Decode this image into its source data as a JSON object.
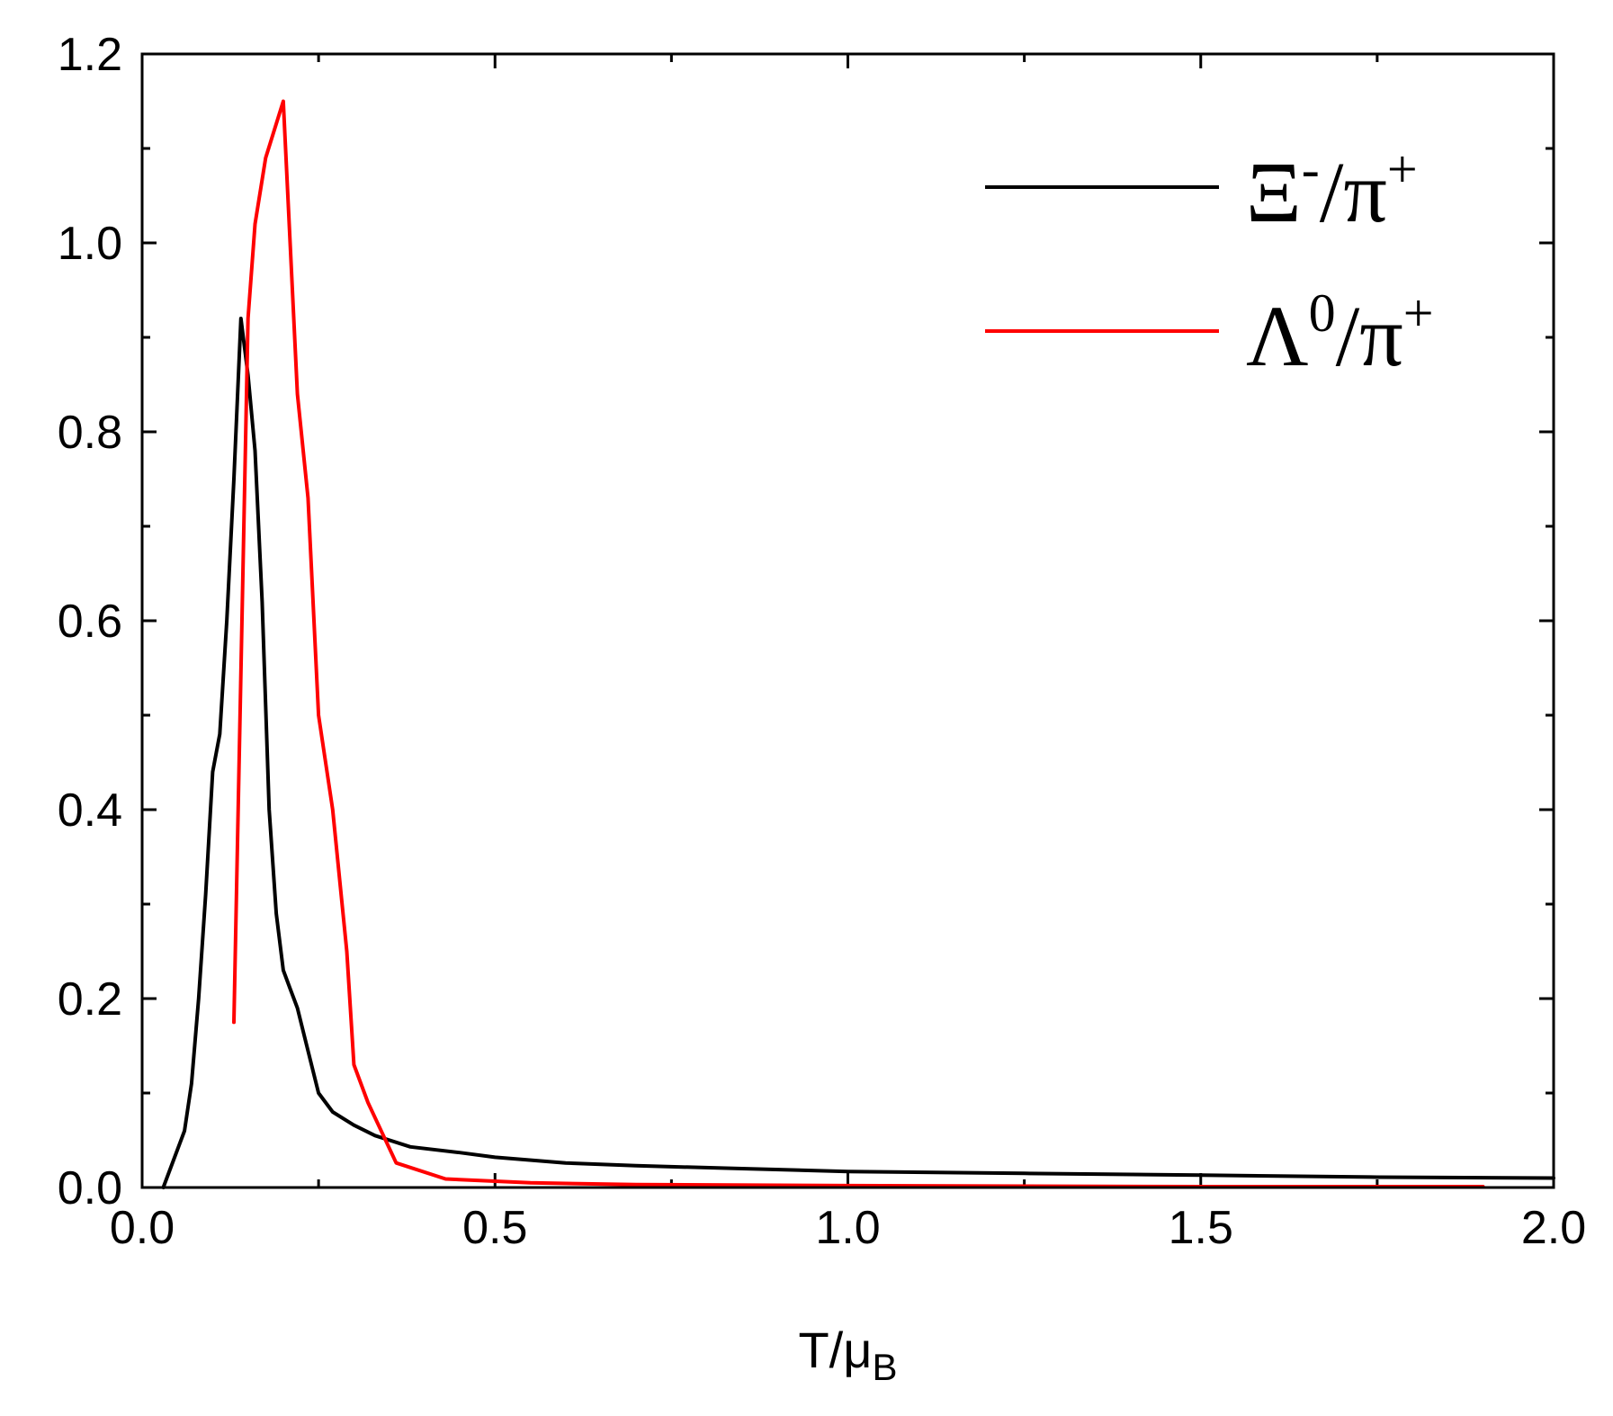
{
  "chart_data": {
    "type": "line",
    "title": "",
    "xlabel": {
      "main": "T/μ",
      "sub": "B"
    },
    "ylabel": "",
    "xlim": [
      0.0,
      2.0
    ],
    "ylim": [
      0.0,
      1.2
    ],
    "xticks": [
      {
        "value": 0.0,
        "label": "0.0"
      },
      {
        "value": 0.5,
        "label": "0.5"
      },
      {
        "value": 1.0,
        "label": "1.0"
      },
      {
        "value": 1.5,
        "label": "1.5"
      },
      {
        "value": 2.0,
        "label": "2.0"
      }
    ],
    "yticks": [
      {
        "value": 0.0,
        "label": "0.0"
      },
      {
        "value": 0.2,
        "label": "0.2"
      },
      {
        "value": 0.4,
        "label": "0.4"
      },
      {
        "value": 0.6,
        "label": "0.6"
      },
      {
        "value": 0.8,
        "label": "0.8"
      },
      {
        "value": 1.0,
        "label": "1.0"
      },
      {
        "value": 1.2,
        "label": "1.2"
      }
    ],
    "x_minor_step": 0.25,
    "y_minor_step": 0.1,
    "grid": false,
    "legend_position": "top-right",
    "series": [
      {
        "name": "Ξ-/π+",
        "legend": {
          "base": "Ξ",
          "sup1": "-",
          "mid": "/π",
          "sup2": "+"
        },
        "color": "#000000",
        "x": [
          0.03,
          0.045,
          0.06,
          0.07,
          0.08,
          0.09,
          0.1,
          0.11,
          0.12,
          0.13,
          0.14,
          0.15,
          0.16,
          0.17,
          0.18,
          0.19,
          0.2,
          0.21,
          0.22,
          0.23,
          0.25,
          0.27,
          0.3,
          0.33,
          0.38,
          0.45,
          0.5,
          0.6,
          0.7,
          0.85,
          1.0,
          1.25,
          1.5,
          1.75,
          2.0
        ],
        "y": [
          0.0,
          0.03,
          0.06,
          0.11,
          0.2,
          0.31,
          0.44,
          0.48,
          0.6,
          0.75,
          0.92,
          0.86,
          0.78,
          0.62,
          0.4,
          0.29,
          0.23,
          0.21,
          0.19,
          0.16,
          0.1,
          0.08,
          0.066,
          0.055,
          0.043,
          0.037,
          0.032,
          0.026,
          0.023,
          0.02,
          0.017,
          0.015,
          0.013,
          0.011,
          0.01
        ]
      },
      {
        "name": "Λ0/π+",
        "legend": {
          "base": "Λ",
          "sup1": "0",
          "mid": "/π",
          "sup2": "+"
        },
        "color": "#ff0000",
        "x": [
          0.13,
          0.15,
          0.16,
          0.175,
          0.2,
          0.22,
          0.235,
          0.25,
          0.27,
          0.29,
          0.3,
          0.32,
          0.36,
          0.43,
          0.55,
          0.7,
          1.0,
          1.5,
          1.9
        ],
        "y": [
          0.175,
          0.92,
          1.02,
          1.09,
          1.15,
          0.84,
          0.73,
          0.5,
          0.4,
          0.25,
          0.13,
          0.09,
          0.026,
          0.009,
          0.005,
          0.003,
          0.002,
          0.001,
          0.001
        ]
      }
    ]
  }
}
